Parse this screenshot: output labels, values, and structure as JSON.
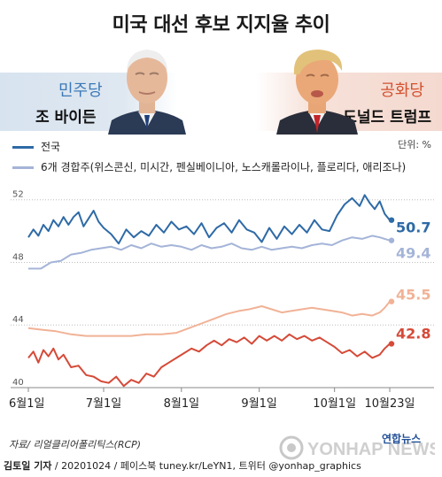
{
  "title": "미국 대선 후보 지지율 추이",
  "democrat": {
    "party": "민주당",
    "candidate": "조 바이든"
  },
  "republican": {
    "party": "공화당",
    "candidate": "도널드 트럼프"
  },
  "unit": "단위: %",
  "source": "자료/ 리얼클리어폴리틱스(RCP)",
  "footer": {
    "author": "김토일 기자",
    "info": " / 20201024 / 페이스북 tuney.kr/LeYN1, 트위터 @yonhap_graphics"
  },
  "logo_text": "연합뉴스",
  "watermark": "YONHAP NEWS",
  "colors": {
    "biden_national": "#2e6aa6",
    "biden_battleground": "#a4b4d8",
    "trump_national": "#d54a38",
    "trump_battleground": "#f1b296"
  },
  "chart_data": {
    "type": "line",
    "x_range": [
      "2020-06-01",
      "2020-10-23"
    ],
    "ylim": [
      40,
      53
    ],
    "y_ticks": [
      40,
      44,
      48,
      52
    ],
    "x_ticks": [
      {
        "date": "2020-06-01",
        "label": "6월1일"
      },
      {
        "date": "2020-07-01",
        "label": "7월1일"
      },
      {
        "date": "2020-08-01",
        "label": "8월1일"
      },
      {
        "date": "2020-09-01",
        "label": "9월1일"
      },
      {
        "date": "2020-10-01",
        "label": "10월1일"
      },
      {
        "date": "2020-10-23",
        "label": "10월23일"
      }
    ],
    "legend": [
      {
        "label": "전국",
        "color": "#2e6aa6"
      },
      {
        "label": "6개 경합주(위스콘신, 미시간, 펜실베이니아, 노스캐롤라이나, 플로리다, 애리조나)",
        "color": "#a4b4d8"
      }
    ],
    "series": [
      {
        "candidate": "biden",
        "scope": "national",
        "color": "#2e6aa6",
        "end_label": "50.7",
        "points": [
          [
            "2020-06-01",
            49.6
          ],
          [
            "2020-06-03",
            50.1
          ],
          [
            "2020-06-05",
            49.7
          ],
          [
            "2020-06-07",
            50.4
          ],
          [
            "2020-06-09",
            50.0
          ],
          [
            "2020-06-11",
            50.7
          ],
          [
            "2020-06-13",
            50.3
          ],
          [
            "2020-06-15",
            50.9
          ],
          [
            "2020-06-17",
            50.4
          ],
          [
            "2020-06-19",
            50.9
          ],
          [
            "2020-06-21",
            51.2
          ],
          [
            "2020-06-23",
            50.3
          ],
          [
            "2020-06-25",
            50.8
          ],
          [
            "2020-06-27",
            51.3
          ],
          [
            "2020-06-29",
            50.6
          ],
          [
            "2020-07-01",
            50.2
          ],
          [
            "2020-07-04",
            49.8
          ],
          [
            "2020-07-07",
            49.2
          ],
          [
            "2020-07-10",
            50.1
          ],
          [
            "2020-07-13",
            49.6
          ],
          [
            "2020-07-16",
            50.0
          ],
          [
            "2020-07-19",
            49.7
          ],
          [
            "2020-07-22",
            50.4
          ],
          [
            "2020-07-25",
            49.9
          ],
          [
            "2020-07-28",
            50.6
          ],
          [
            "2020-07-31",
            50.1
          ],
          [
            "2020-08-03",
            50.3
          ],
          [
            "2020-08-06",
            49.8
          ],
          [
            "2020-08-09",
            50.5
          ],
          [
            "2020-08-12",
            49.6
          ],
          [
            "2020-08-15",
            50.2
          ],
          [
            "2020-08-18",
            50.5
          ],
          [
            "2020-08-21",
            49.9
          ],
          [
            "2020-08-24",
            50.7
          ],
          [
            "2020-08-27",
            50.1
          ],
          [
            "2020-08-30",
            49.9
          ],
          [
            "2020-09-02",
            49.3
          ],
          [
            "2020-09-05",
            50.2
          ],
          [
            "2020-09-08",
            49.5
          ],
          [
            "2020-09-11",
            50.3
          ],
          [
            "2020-09-14",
            49.8
          ],
          [
            "2020-09-17",
            50.4
          ],
          [
            "2020-09-20",
            49.9
          ],
          [
            "2020-09-23",
            50.7
          ],
          [
            "2020-09-26",
            50.1
          ],
          [
            "2020-09-29",
            50.0
          ],
          [
            "2020-10-02",
            51.0
          ],
          [
            "2020-10-05",
            51.7
          ],
          [
            "2020-10-08",
            52.1
          ],
          [
            "2020-10-11",
            51.6
          ],
          [
            "2020-10-13",
            52.3
          ],
          [
            "2020-10-15",
            51.8
          ],
          [
            "2020-10-17",
            51.4
          ],
          [
            "2020-10-19",
            51.9
          ],
          [
            "2020-10-21",
            51.1
          ],
          [
            "2020-10-23",
            50.7
          ]
        ]
      },
      {
        "candidate": "biden",
        "scope": "battleground",
        "color": "#a4b4d8",
        "end_label": "49.4",
        "points": [
          [
            "2020-06-01",
            47.6
          ],
          [
            "2020-06-06",
            47.6
          ],
          [
            "2020-06-10",
            48.0
          ],
          [
            "2020-06-14",
            48.1
          ],
          [
            "2020-06-18",
            48.5
          ],
          [
            "2020-06-22",
            48.6
          ],
          [
            "2020-06-26",
            48.8
          ],
          [
            "2020-06-30",
            48.9
          ],
          [
            "2020-07-04",
            49.0
          ],
          [
            "2020-07-08",
            48.8
          ],
          [
            "2020-07-12",
            49.1
          ],
          [
            "2020-07-16",
            48.9
          ],
          [
            "2020-07-20",
            49.2
          ],
          [
            "2020-07-24",
            49.0
          ],
          [
            "2020-07-28",
            49.1
          ],
          [
            "2020-08-01",
            49.0
          ],
          [
            "2020-08-05",
            48.8
          ],
          [
            "2020-08-09",
            49.1
          ],
          [
            "2020-08-13",
            48.9
          ],
          [
            "2020-08-17",
            49.0
          ],
          [
            "2020-08-21",
            49.2
          ],
          [
            "2020-08-25",
            48.9
          ],
          [
            "2020-08-29",
            48.8
          ],
          [
            "2020-09-02",
            49.0
          ],
          [
            "2020-09-06",
            48.8
          ],
          [
            "2020-09-10",
            48.9
          ],
          [
            "2020-09-14",
            49.0
          ],
          [
            "2020-09-18",
            48.9
          ],
          [
            "2020-09-22",
            49.1
          ],
          [
            "2020-09-26",
            49.2
          ],
          [
            "2020-09-30",
            49.1
          ],
          [
            "2020-10-04",
            49.4
          ],
          [
            "2020-10-08",
            49.6
          ],
          [
            "2020-10-12",
            49.5
          ],
          [
            "2020-10-16",
            49.7
          ],
          [
            "2020-10-19",
            49.6
          ],
          [
            "2020-10-21",
            49.5
          ],
          [
            "2020-10-23",
            49.4
          ]
        ]
      },
      {
        "candidate": "trump",
        "scope": "battleground",
        "color": "#f1b296",
        "end_label": "45.5",
        "points": [
          [
            "2020-06-01",
            43.8
          ],
          [
            "2020-06-06",
            43.7
          ],
          [
            "2020-06-12",
            43.6
          ],
          [
            "2020-06-18",
            43.4
          ],
          [
            "2020-06-24",
            43.3
          ],
          [
            "2020-06-30",
            43.3
          ],
          [
            "2020-07-06",
            43.3
          ],
          [
            "2020-07-12",
            43.3
          ],
          [
            "2020-07-18",
            43.4
          ],
          [
            "2020-07-24",
            43.4
          ],
          [
            "2020-07-30",
            43.5
          ],
          [
            "2020-08-04",
            43.8
          ],
          [
            "2020-08-09",
            44.1
          ],
          [
            "2020-08-14",
            44.4
          ],
          [
            "2020-08-19",
            44.7
          ],
          [
            "2020-08-24",
            44.9
          ],
          [
            "2020-08-28",
            45.0
          ],
          [
            "2020-09-02",
            45.2
          ],
          [
            "2020-09-06",
            45.0
          ],
          [
            "2020-09-10",
            44.8
          ],
          [
            "2020-09-14",
            44.9
          ],
          [
            "2020-09-18",
            45.0
          ],
          [
            "2020-09-22",
            45.1
          ],
          [
            "2020-09-26",
            45.0
          ],
          [
            "2020-09-30",
            44.9
          ],
          [
            "2020-10-04",
            44.8
          ],
          [
            "2020-10-08",
            44.6
          ],
          [
            "2020-10-12",
            44.7
          ],
          [
            "2020-10-16",
            44.6
          ],
          [
            "2020-10-19",
            44.8
          ],
          [
            "2020-10-21",
            45.1
          ],
          [
            "2020-10-23",
            45.5
          ]
        ]
      },
      {
        "candidate": "trump",
        "scope": "national",
        "color": "#d54a38",
        "end_label": "42.8",
        "points": [
          [
            "2020-06-01",
            41.9
          ],
          [
            "2020-06-03",
            42.3
          ],
          [
            "2020-06-05",
            41.6
          ],
          [
            "2020-06-07",
            42.4
          ],
          [
            "2020-06-09",
            42.0
          ],
          [
            "2020-06-11",
            42.5
          ],
          [
            "2020-06-13",
            41.8
          ],
          [
            "2020-06-15",
            42.1
          ],
          [
            "2020-06-18",
            41.3
          ],
          [
            "2020-06-21",
            41.4
          ],
          [
            "2020-06-24",
            40.8
          ],
          [
            "2020-06-27",
            40.7
          ],
          [
            "2020-06-30",
            40.4
          ],
          [
            "2020-07-03",
            40.3
          ],
          [
            "2020-07-06",
            40.7
          ],
          [
            "2020-07-09",
            40.1
          ],
          [
            "2020-07-12",
            40.5
          ],
          [
            "2020-07-15",
            40.3
          ],
          [
            "2020-07-18",
            40.9
          ],
          [
            "2020-07-21",
            40.7
          ],
          [
            "2020-07-24",
            41.3
          ],
          [
            "2020-07-27",
            41.6
          ],
          [
            "2020-07-30",
            41.9
          ],
          [
            "2020-08-02",
            42.2
          ],
          [
            "2020-08-05",
            42.5
          ],
          [
            "2020-08-08",
            42.3
          ],
          [
            "2020-08-11",
            42.7
          ],
          [
            "2020-08-14",
            43.0
          ],
          [
            "2020-08-17",
            42.7
          ],
          [
            "2020-08-20",
            43.1
          ],
          [
            "2020-08-23",
            42.9
          ],
          [
            "2020-08-26",
            43.2
          ],
          [
            "2020-08-29",
            42.8
          ],
          [
            "2020-09-01",
            43.3
          ],
          [
            "2020-09-04",
            43.0
          ],
          [
            "2020-09-07",
            43.3
          ],
          [
            "2020-09-10",
            43.0
          ],
          [
            "2020-09-13",
            43.4
          ],
          [
            "2020-09-16",
            43.1
          ],
          [
            "2020-09-19",
            43.3
          ],
          [
            "2020-09-22",
            43.0
          ],
          [
            "2020-09-25",
            43.2
          ],
          [
            "2020-09-28",
            42.9
          ],
          [
            "2020-10-01",
            42.6
          ],
          [
            "2020-10-04",
            42.2
          ],
          [
            "2020-10-07",
            42.4
          ],
          [
            "2020-10-10",
            42.0
          ],
          [
            "2020-10-13",
            42.3
          ],
          [
            "2020-10-16",
            41.9
          ],
          [
            "2020-10-19",
            42.1
          ],
          [
            "2020-10-21",
            42.5
          ],
          [
            "2020-10-23",
            42.8
          ]
        ]
      }
    ]
  }
}
